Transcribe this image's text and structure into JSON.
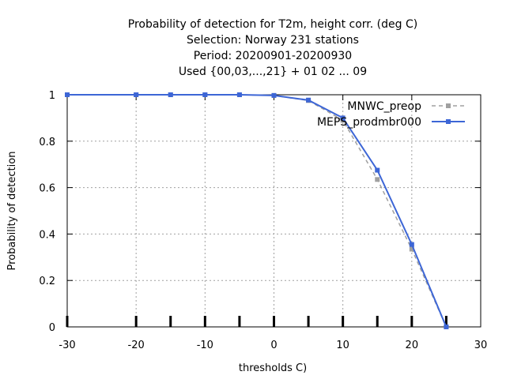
{
  "chart_data": {
    "type": "line",
    "title_lines": [
      "Probability of detection  for T2m, height corr. (deg C)",
      "Selection: Norway    231 stations",
      "Period: 20200901-20200930",
      "Used {00,03,...,21} + 01 02 ... 09"
    ],
    "xlabel": "thresholds C)",
    "ylabel": "Probability of detection",
    "xlim": [
      -30,
      30
    ],
    "ylim": [
      0,
      1
    ],
    "xticks": [
      -30,
      -20,
      -10,
      0,
      10,
      20,
      30
    ],
    "yticks": [
      0,
      0.2,
      0.4,
      0.6,
      0.8,
      1
    ],
    "ytick_labels": [
      "0",
      "0.2",
      "0.4",
      "0.6",
      "0.8",
      "1"
    ],
    "grid": true,
    "legend_position": "top-right",
    "threshold_marks": [
      -30,
      -20,
      -15,
      -10,
      -5,
      0,
      5,
      10,
      15,
      20,
      25
    ],
    "series": [
      {
        "name": "MNWC_preop",
        "color": "#a0a0a0",
        "dashed": true,
        "x": [
          -30,
          -20,
          -15,
          -10,
          -5,
          0,
          5,
          10,
          15,
          20,
          25
        ],
        "y": [
          1.0,
          1.0,
          1.0,
          1.0,
          1.0,
          0.997,
          0.975,
          0.89,
          0.635,
          0.335,
          0.0
        ]
      },
      {
        "name": "MEPS_prodmbr000",
        "color": "#3d66d6",
        "dashed": false,
        "x": [
          -30,
          -20,
          -15,
          -10,
          -5,
          0,
          5,
          10,
          15,
          20,
          25
        ],
        "y": [
          1.0,
          1.0,
          1.0,
          1.0,
          1.0,
          0.997,
          0.977,
          0.9,
          0.675,
          0.355,
          0.0
        ]
      }
    ]
  }
}
